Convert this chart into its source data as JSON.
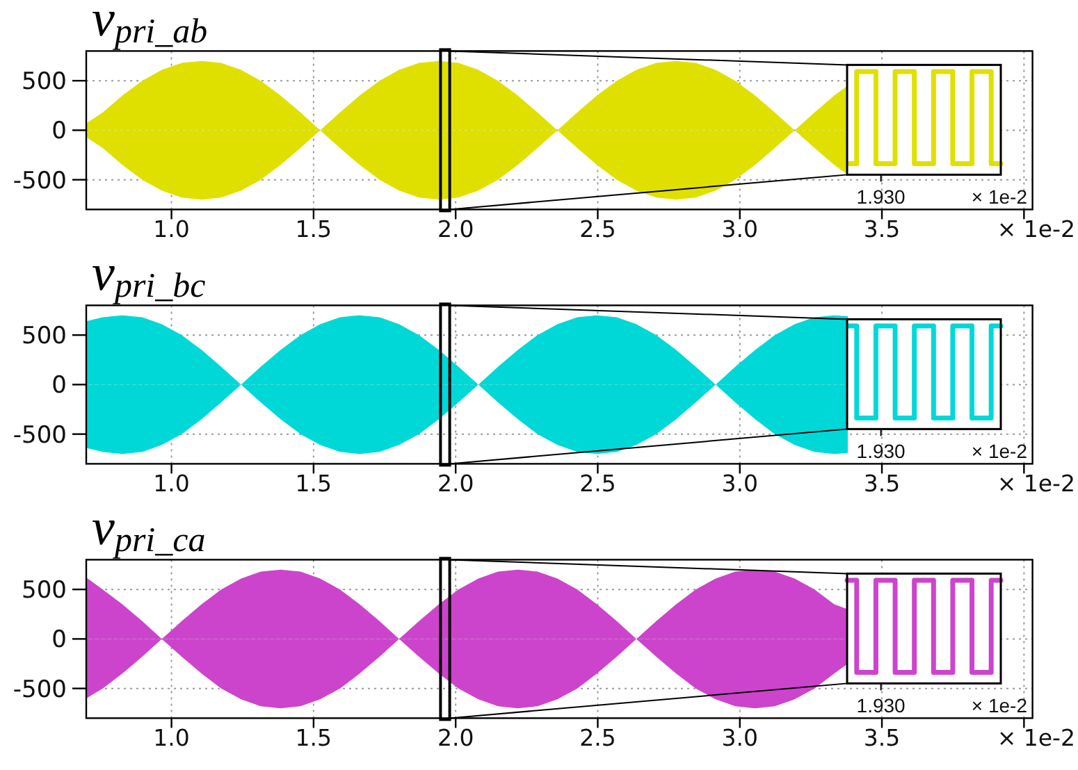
{
  "chart_data": [
    {
      "type": "area",
      "title": "v$_{pri_ab}$",
      "xlabel": "× 1e-2",
      "xlim": [
        0.7,
        4.03
      ],
      "ylim": [
        -800,
        800
      ],
      "xticks": [
        {
          "value": 1,
          "label": "1.0"
        },
        {
          "value": 1.5,
          "label": "1.5"
        },
        {
          "value": 2,
          "label": "2.0"
        },
        {
          "value": 2.5,
          "label": "2.5"
        },
        {
          "value": 3,
          "label": "3.0"
        },
        {
          "value": 3.5,
          "label": "3.5"
        },
        {
          "value": 4,
          "label": null
        }
      ],
      "yticks": [
        -500,
        0,
        500
      ],
      "grid": true,
      "x": [
        0.7,
        0.758,
        0.827,
        0.897,
        0.966,
        1.036,
        1.106,
        1.175,
        1.245,
        1.314,
        1.384,
        1.454,
        1.523,
        1.593,
        1.662,
        1.732,
        1.801,
        1.871,
        1.941,
        2.01,
        2.08,
        2.149,
        2.219,
        2.288,
        2.358,
        2.428,
        2.497,
        2.567,
        2.636,
        2.706,
        2.776,
        2.845,
        2.915,
        2.984,
        3.054,
        3.123,
        3.193,
        3.263,
        3.332,
        3.38
      ],
      "series": [
        {
          "color": "#e0e000",
          "values": [
            70,
            180,
            350,
            500,
            610,
            680,
            700,
            680,
            610,
            500,
            350,
            180,
            0,
            180,
            350,
            500,
            610,
            680,
            700,
            680,
            610,
            500,
            350,
            180,
            0,
            180,
            350,
            500,
            610,
            680,
            700,
            680,
            610,
            500,
            350,
            180,
            0,
            180,
            350,
            450
          ]
        },
        {
          "color": "#e0e000",
          "values": [
            -70,
            -180,
            -350,
            -500,
            -610,
            -680,
            -700,
            -680,
            -610,
            -500,
            -350,
            -180,
            0,
            -180,
            -350,
            -500,
            -610,
            -680,
            -700,
            -680,
            -610,
            -500,
            -350,
            -180,
            0,
            -180,
            -350,
            -500,
            -610,
            -680,
            -700,
            -680,
            -610,
            -500,
            -350,
            -180,
            0,
            -180,
            -350,
            -450
          ]
        }
      ]
    },
    {
      "type": "other",
      "annotations": [
        "1.930",
        "× 1e-2"
      ]
    },
    {
      "type": "area",
      "title": "v$_{pri_bc}$",
      "xlabel": "× 1e-2",
      "xlim": [
        0.7,
        4.03
      ],
      "ylim": [
        -800,
        800
      ],
      "xticks": [
        {
          "value": 1,
          "label": "1.0"
        },
        {
          "value": 1.5,
          "label": "1.5"
        },
        {
          "value": 2,
          "label": "2.0"
        },
        {
          "value": 2.5,
          "label": "2.5"
        },
        {
          "value": 3,
          "label": "3.0"
        },
        {
          "value": 3.5,
          "label": "3.5"
        },
        {
          "value": 4,
          "label": null
        }
      ],
      "yticks": [
        -500,
        0,
        500
      ],
      "grid": true,
      "x": [
        0.7,
        0.758,
        0.827,
        0.897,
        0.966,
        1.036,
        1.106,
        1.175,
        1.245,
        1.314,
        1.384,
        1.454,
        1.523,
        1.593,
        1.662,
        1.732,
        1.801,
        1.871,
        1.941,
        2.01,
        2.08,
        2.149,
        2.219,
        2.288,
        2.358,
        2.428,
        2.497,
        2.567,
        2.636,
        2.706,
        2.776,
        2.845,
        2.915,
        2.984,
        3.054,
        3.123,
        3.193,
        3.263,
        3.332,
        3.38
      ],
      "series": [
        {
          "color": "#00d8d8",
          "values": [
            640,
            680,
            700,
            680,
            610,
            500,
            350,
            180,
            0,
            180,
            350,
            500,
            610,
            680,
            700,
            680,
            610,
            500,
            350,
            180,
            0,
            180,
            350,
            500,
            610,
            680,
            700,
            680,
            610,
            500,
            350,
            180,
            0,
            180,
            350,
            500,
            610,
            680,
            700,
            690
          ]
        },
        {
          "color": "#00d8d8",
          "values": [
            -640,
            -680,
            -700,
            -680,
            -610,
            -500,
            -350,
            -180,
            0,
            -180,
            -350,
            -500,
            -610,
            -680,
            -700,
            -680,
            -610,
            -500,
            -350,
            -180,
            0,
            -180,
            -350,
            -500,
            -610,
            -680,
            -700,
            -680,
            -610,
            -500,
            -350,
            -180,
            0,
            -180,
            -350,
            -500,
            -610,
            -680,
            -700,
            -690
          ]
        }
      ]
    },
    {
      "type": "other",
      "annotations": [
        "1.930",
        "× 1e-2"
      ]
    },
    {
      "type": "area",
      "title": "v$_{pri_ca}$",
      "xlabel": "× 1e-2",
      "xlim": [
        0.7,
        4.03
      ],
      "ylim": [
        -800,
        800
      ],
      "xticks": [
        {
          "value": 1,
          "label": "1.0"
        },
        {
          "value": 1.5,
          "label": "1.5"
        },
        {
          "value": 2,
          "label": "2.0"
        },
        {
          "value": 2.5,
          "label": "2.5"
        },
        {
          "value": 3,
          "label": "3.0"
        },
        {
          "value": 3.5,
          "label": "3.5"
        },
        {
          "value": 4,
          "label": null
        }
      ],
      "yticks": [
        -500,
        0,
        500
      ],
      "grid": true,
      "x": [
        0.7,
        0.758,
        0.827,
        0.897,
        0.966,
        1.036,
        1.106,
        1.175,
        1.245,
        1.314,
        1.384,
        1.454,
        1.523,
        1.593,
        1.662,
        1.732,
        1.801,
        1.871,
        1.941,
        2.01,
        2.08,
        2.149,
        2.219,
        2.288,
        2.358,
        2.428,
        2.497,
        2.567,
        2.636,
        2.706,
        2.776,
        2.845,
        2.915,
        2.984,
        3.054,
        3.123,
        3.193,
        3.263,
        3.332,
        3.38
      ],
      "series": [
        {
          "color": "#cc44cc",
          "values": [
            620,
            500,
            350,
            180,
            0,
            180,
            350,
            500,
            610,
            680,
            700,
            680,
            610,
            500,
            350,
            180,
            0,
            180,
            350,
            500,
            610,
            680,
            700,
            680,
            610,
            500,
            350,
            180,
            0,
            180,
            350,
            500,
            610,
            680,
            700,
            680,
            610,
            500,
            350,
            300
          ]
        },
        {
          "color": "#cc44cc",
          "values": [
            -600,
            -500,
            -350,
            -180,
            0,
            -180,
            -350,
            -500,
            -610,
            -680,
            -700,
            -680,
            -610,
            -500,
            -350,
            -180,
            0,
            -180,
            -350,
            -500,
            -610,
            -680,
            -700,
            -680,
            -610,
            -500,
            -350,
            -180,
            0,
            -180,
            -350,
            -500,
            -610,
            -680,
            -700,
            -680,
            -610,
            -500,
            -350,
            -250
          ]
        }
      ]
    },
    {
      "type": "other",
      "annotations": [
        "1.930",
        "× 1e-2"
      ]
    }
  ]
}
